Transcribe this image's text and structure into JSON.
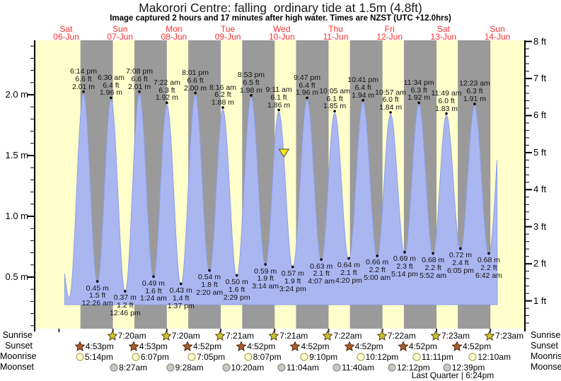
{
  "title": "Makorori Centre: falling  ordinary tide at 1.5m (4.8ft)",
  "subtitle": "Image captured 2 hours and 17 minutes after high water. Times are NZST (UTC +12.0hrs)",
  "colors": {
    "day_band": "#ffffcc",
    "night_band": "#9a9a9a",
    "tide_fill": "#aab6f0",
    "tide_edge": "#8d9de8",
    "day_label_red": "#f83030",
    "now_marker_fill": "#ffe60a",
    "sunrise_star": "#c9c92f",
    "sunset_star": "#b25d28",
    "moonrise_circle": "#ffffd8",
    "moonset_circle": "#c9c9c1"
  },
  "chart_data": {
    "type": "area",
    "title": "Makorori Centre: falling  ordinary tide at 1.5m (4.8ft)",
    "ylabel_left_unit": "m",
    "ylabel_right_unit": "ft",
    "y_axis_left_labels": [
      "0.5 m",
      "1.0 m",
      "1.5 m",
      "2.0 m"
    ],
    "y_axis_left_values": [
      0.5,
      1.0,
      1.5,
      2.0
    ],
    "y_axis_right_labels": [
      "1 ft",
      "2 ft",
      "3 ft",
      "4 ft",
      "5 ft",
      "6 ft",
      "7 ft",
      "8 ft"
    ],
    "y_axis_right_values": [
      1,
      2,
      3,
      4,
      5,
      6,
      7,
      8
    ],
    "days": [
      {
        "name": "Sat",
        "date": "06-Jun"
      },
      {
        "name": "Sun",
        "date": "07-Jun"
      },
      {
        "name": "Mon",
        "date": "08-Jun"
      },
      {
        "name": "Tue",
        "date": "09-Jun"
      },
      {
        "name": "Wed",
        "date": "10-Jun"
      },
      {
        "name": "Thu",
        "date": "11-Jun"
      },
      {
        "name": "Fri",
        "date": "12-Jun"
      },
      {
        "name": "Sat",
        "date": "13-Jun"
      },
      {
        "name": "Sun",
        "date": "14-Jun"
      }
    ],
    "tide_events": [
      {
        "day": 0,
        "time": "6:14 pm",
        "type": "high",
        "height_m": 2.01,
        "height_ft": 6.6
      },
      {
        "day": 1,
        "time": "12:26 am",
        "type": "low",
        "height_m": 0.45,
        "height_ft": 1.5
      },
      {
        "day": 1,
        "time": "6:30 am",
        "type": "high",
        "height_m": 1.96,
        "height_ft": 6.4
      },
      {
        "day": 1,
        "time": "12:46 pm",
        "type": "low",
        "height_m": 0.37,
        "height_ft": 1.2
      },
      {
        "day": 1,
        "time": "7:08 pm",
        "type": "high",
        "height_m": 2.01,
        "height_ft": 6.6
      },
      {
        "day": 2,
        "time": "1:24 am",
        "type": "low",
        "height_m": 0.49,
        "height_ft": 1.6
      },
      {
        "day": 2,
        "time": "7:22 am",
        "type": "high",
        "height_m": 1.92,
        "height_ft": 6.3
      },
      {
        "day": 2,
        "time": "1:37 pm",
        "type": "low",
        "height_m": 0.43,
        "height_ft": 1.4
      },
      {
        "day": 2,
        "time": "8:01 pm",
        "type": "high",
        "height_m": 2.0,
        "height_ft": 6.6
      },
      {
        "day": 3,
        "time": "2:20 am",
        "type": "low",
        "height_m": 0.54,
        "height_ft": 1.8
      },
      {
        "day": 3,
        "time": "8:16 am",
        "type": "high",
        "height_m": 1.88,
        "height_ft": 6.2
      },
      {
        "day": 3,
        "time": "2:29 pm",
        "type": "low",
        "height_m": 0.5,
        "height_ft": 1.6
      },
      {
        "day": 3,
        "time": "8:53 pm",
        "type": "high",
        "height_m": 1.98,
        "height_ft": 6.5
      },
      {
        "day": 4,
        "time": "3:14 am",
        "type": "low",
        "height_m": 0.59,
        "height_ft": 1.9
      },
      {
        "day": 4,
        "time": "9:11 am",
        "type": "high",
        "height_m": 1.86,
        "height_ft": 6.1
      },
      {
        "day": 4,
        "time": "3:24 pm",
        "type": "low",
        "height_m": 0.57,
        "height_ft": 1.9
      },
      {
        "day": 4,
        "time": "9:47 pm",
        "type": "high",
        "height_m": 1.96,
        "height_ft": 6.4
      },
      {
        "day": 5,
        "time": "4:07 am",
        "type": "low",
        "height_m": 0.63,
        "height_ft": 2.1
      },
      {
        "day": 5,
        "time": "10:05 am",
        "type": "high",
        "height_m": 1.85,
        "height_ft": 6.1
      },
      {
        "day": 5,
        "time": "4:20 pm",
        "type": "low",
        "height_m": 0.64,
        "height_ft": 2.1
      },
      {
        "day": 5,
        "time": "10:41 pm",
        "type": "high",
        "height_m": 1.94,
        "height_ft": 6.4
      },
      {
        "day": 6,
        "time": "5:00 am",
        "type": "low",
        "height_m": 0.66,
        "height_ft": 2.2
      },
      {
        "day": 6,
        "time": "10:57 am",
        "type": "high",
        "height_m": 1.84,
        "height_ft": 6.0
      },
      {
        "day": 6,
        "time": "5:14 pm",
        "type": "low",
        "height_m": 0.69,
        "height_ft": 2.3
      },
      {
        "day": 6,
        "time": "11:34 pm",
        "type": "high",
        "height_m": 1.92,
        "height_ft": 6.3
      },
      {
        "day": 7,
        "time": "5:52 am",
        "type": "low",
        "height_m": 0.68,
        "height_ft": 2.2
      },
      {
        "day": 7,
        "time": "11:49 am",
        "type": "high",
        "height_m": 1.83,
        "height_ft": 6.0
      },
      {
        "day": 7,
        "time": "6:05 pm",
        "type": "low",
        "height_m": 0.72,
        "height_ft": 2.4
      },
      {
        "day": 8,
        "time": "12:23 am",
        "type": "high",
        "height_m": 1.91,
        "height_ft": 6.3
      },
      {
        "day": 8,
        "time": "6:42 am",
        "type": "low",
        "height_m": 0.68,
        "height_ft": 2.2
      }
    ],
    "now_marker": {
      "day": 4,
      "time": "11:28 am",
      "height_m": 1.5
    },
    "sun_moon": {
      "sunrise": {
        "label": "Sunrise",
        "icon": "sunrise-star",
        "entries": [
          {
            "day": 1,
            "time": "7:20am"
          },
          {
            "day": 2,
            "time": "7:20am"
          },
          {
            "day": 3,
            "time": "7:21am"
          },
          {
            "day": 4,
            "time": "7:21am"
          },
          {
            "day": 5,
            "time": "7:22am"
          },
          {
            "day": 6,
            "time": "7:22am"
          },
          {
            "day": 7,
            "time": "7:23am"
          },
          {
            "day": 8,
            "time": "7:23am"
          }
        ]
      },
      "sunset": {
        "label": "Sunset",
        "icon": "sunset-star",
        "entries": [
          {
            "day": 0,
            "time": "4:53pm"
          },
          {
            "day": 1,
            "time": "4:53pm"
          },
          {
            "day": 2,
            "time": "4:52pm"
          },
          {
            "day": 3,
            "time": "4:52pm"
          },
          {
            "day": 4,
            "time": "4:52pm"
          },
          {
            "day": 5,
            "time": "4:52pm"
          },
          {
            "day": 6,
            "time": "4:52pm"
          },
          {
            "day": 7,
            "time": "4:52pm"
          }
        ]
      },
      "moonrise": {
        "label": "Moonrise",
        "icon": "moonrise-circle",
        "entries": [
          {
            "day": 0,
            "time": "5:14pm"
          },
          {
            "day": 1,
            "time": "6:07pm"
          },
          {
            "day": 2,
            "time": "7:05pm"
          },
          {
            "day": 3,
            "time": "8:07pm"
          },
          {
            "day": 4,
            "time": "9:10pm"
          },
          {
            "day": 5,
            "time": "10:12pm"
          },
          {
            "day": 6,
            "time": "11:11pm"
          },
          {
            "day": 8,
            "time": "12:10am"
          }
        ]
      },
      "moonset": {
        "label": "Moonset",
        "icon": "moonset-circle",
        "entries": [
          {
            "day": 1,
            "time": "8:27am"
          },
          {
            "day": 2,
            "time": "9:28am"
          },
          {
            "day": 3,
            "time": "10:20am"
          },
          {
            "day": 4,
            "time": "11:04am"
          },
          {
            "day": 5,
            "time": "11:40am"
          },
          {
            "day": 6,
            "time": "12:12pm"
          },
          {
            "day": 7,
            "time": "12:39pm"
          }
        ]
      }
    },
    "moon_phase": "Last Quarter | 6:24pm"
  }
}
